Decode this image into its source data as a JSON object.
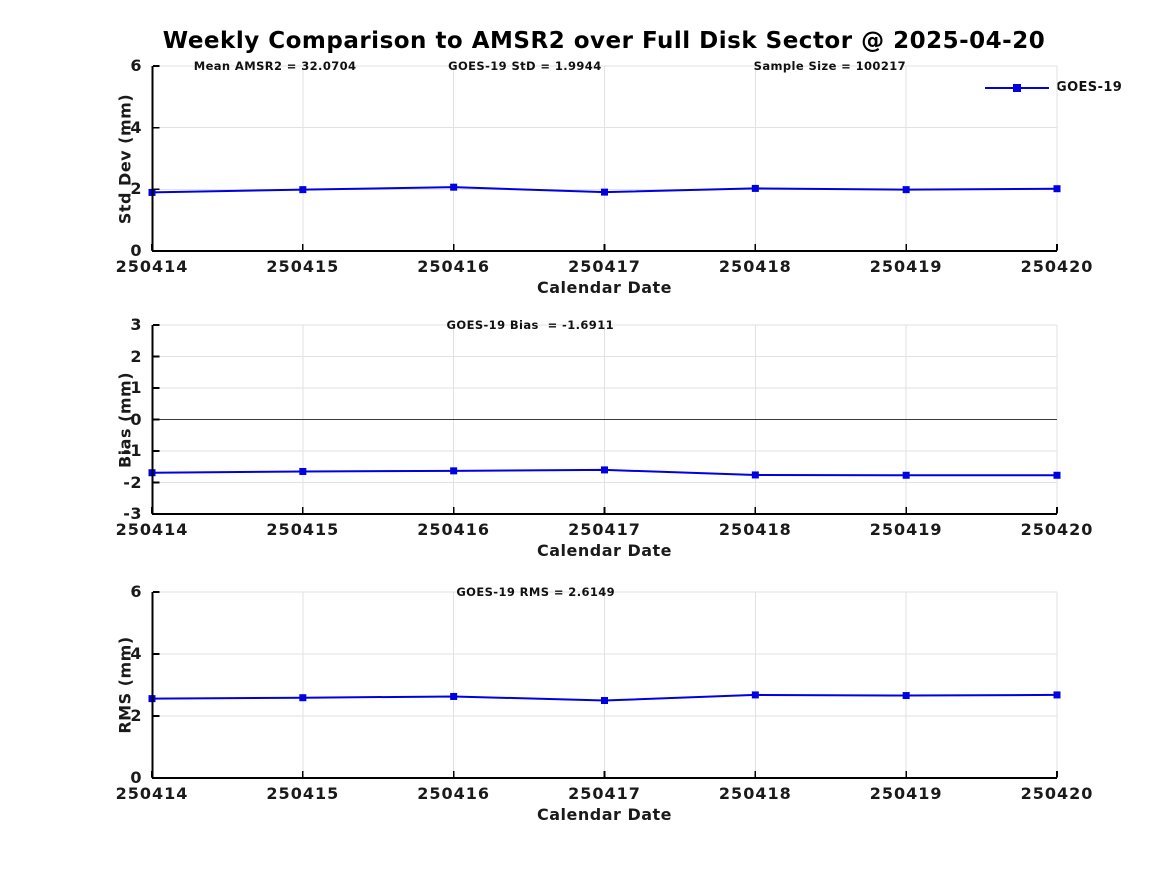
{
  "title": "Weekly Comparison to AMSR2 over Full Disk Sector @ 2025-04-20",
  "legend": {
    "label": "GOES-19",
    "position": "top-right-outside"
  },
  "colors": {
    "series_blue": "#0000e0",
    "grid": "#e2e2e2",
    "zero_line": "#3a3a3a",
    "spine": "#000000",
    "text": "#1a1a1a"
  },
  "chart_data": [
    {
      "type": "line",
      "ylabel": "Std Dev (mm)",
      "xlabel": "Calendar Date",
      "categories": [
        "250414",
        "250415",
        "250416",
        "250417",
        "250418",
        "250419",
        "250420"
      ],
      "series": [
        {
          "name": "GOES-19",
          "values": [
            1.9,
            1.99,
            2.07,
            1.91,
            2.03,
            1.99,
            2.02
          ]
        }
      ],
      "ylim": [
        0,
        6
      ],
      "yticks": [
        0,
        2,
        4,
        6
      ],
      "grid": true,
      "zero_line": false,
      "marker": "square",
      "annotations": [
        {
          "text": "Mean AMSR2 = 32.0704",
          "x": 0.136
        },
        {
          "text": "GOES-19 StD = 1.9944",
          "x": 0.412
        },
        {
          "text": "Sample Size = 100217",
          "x": 0.749
        }
      ]
    },
    {
      "type": "line",
      "ylabel": "Bias (mm)",
      "xlabel": "Calendar Date",
      "categories": [
        "250414",
        "250415",
        "250416",
        "250417",
        "250418",
        "250419",
        "250420"
      ],
      "series": [
        {
          "name": "GOES-19",
          "values": [
            -1.69,
            -1.65,
            -1.63,
            -1.6,
            -1.76,
            -1.77,
            -1.77
          ]
        }
      ],
      "ylim": [
        -3,
        3
      ],
      "yticks": [
        -3,
        -2,
        -1,
        0,
        1,
        2,
        3
      ],
      "grid": true,
      "zero_line": true,
      "marker": "square",
      "annotations": [
        {
          "text": "GOES-19 Bias  = -1.6911",
          "x": 0.418
        }
      ]
    },
    {
      "type": "line",
      "ylabel": "RMS (mm)",
      "xlabel": "Calendar Date",
      "categories": [
        "250414",
        "250415",
        "250416",
        "250417",
        "250418",
        "250419",
        "250420"
      ],
      "series": [
        {
          "name": "GOES-19",
          "values": [
            2.56,
            2.59,
            2.63,
            2.5,
            2.68,
            2.66,
            2.68
          ]
        }
      ],
      "ylim": [
        0,
        6
      ],
      "yticks": [
        0,
        2,
        4,
        6
      ],
      "grid": true,
      "zero_line": false,
      "marker": "square",
      "annotations": [
        {
          "text": "GOES-19 RMS = 2.6149",
          "x": 0.424
        }
      ]
    }
  ]
}
